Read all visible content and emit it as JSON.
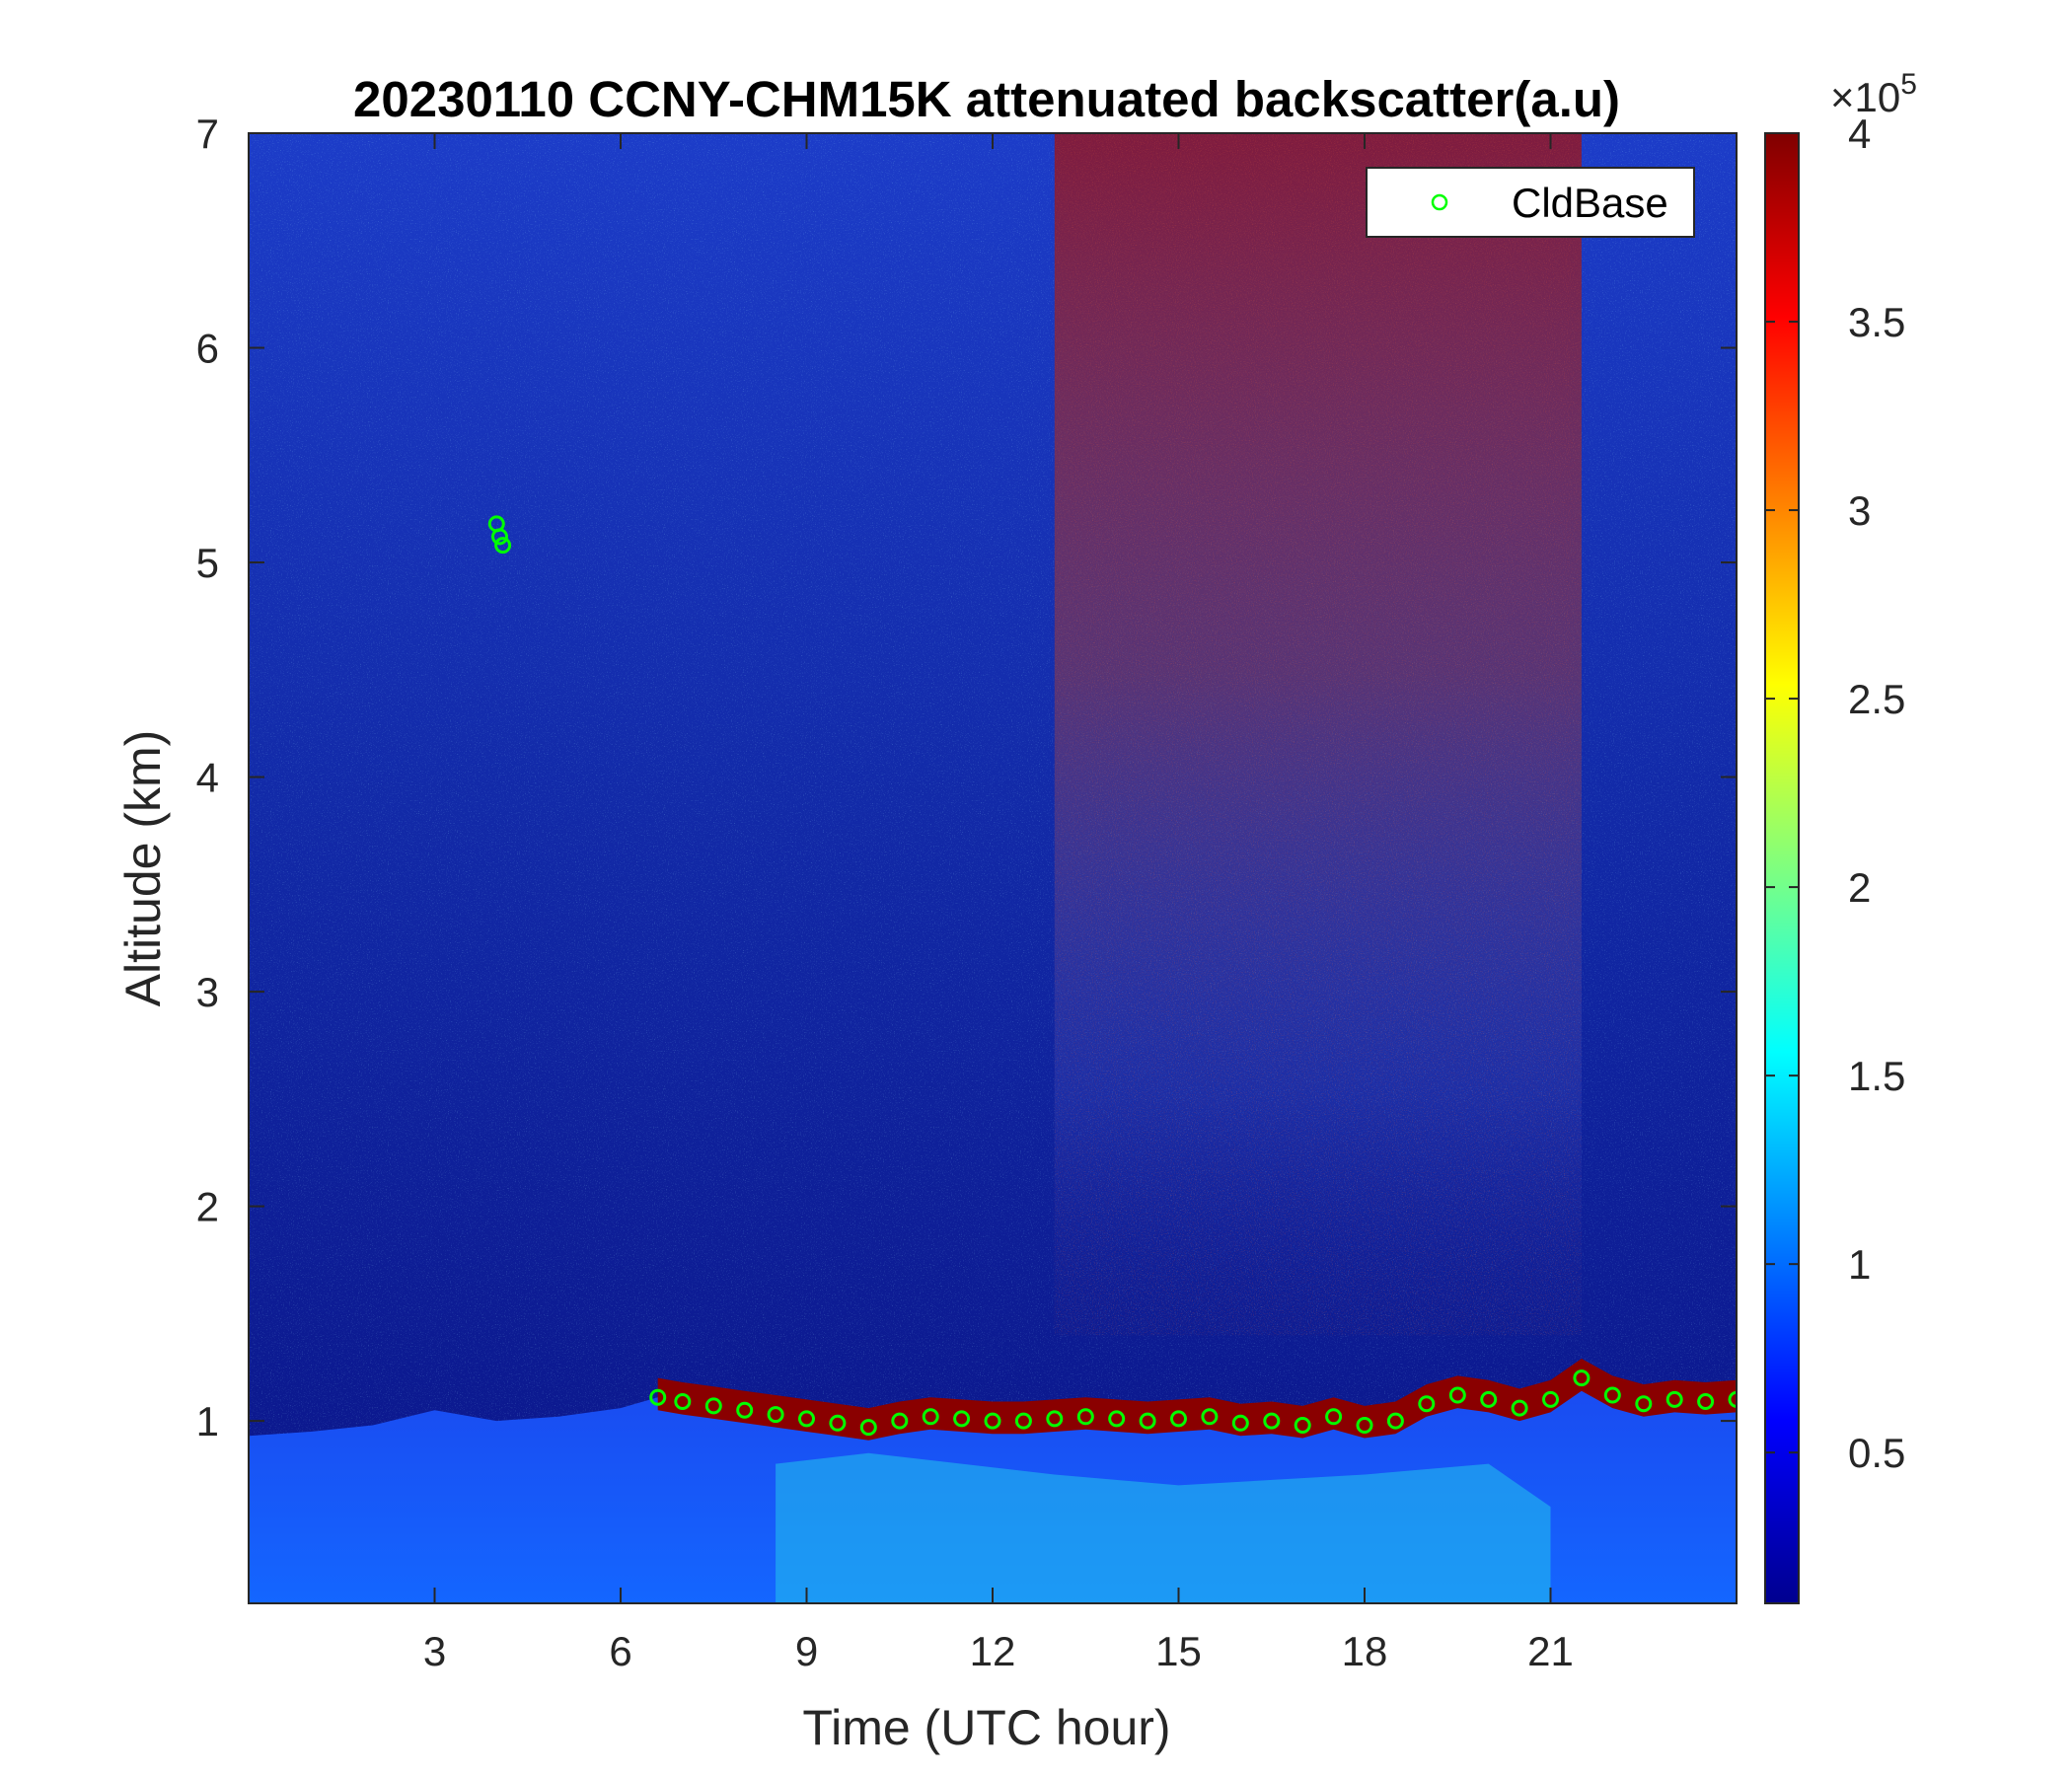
{
  "chart_data": {
    "type": "heatmap",
    "title": "20230110 CCNY-CHM15K attenuated backscatter(a.u)",
    "xlabel": "Time (UTC hour)",
    "ylabel": "Altitude (km)",
    "xlim": [
      0,
      24
    ],
    "ylim": [
      0.15,
      7
    ],
    "xticks": [
      3,
      6,
      9,
      12,
      15,
      18,
      21
    ],
    "yticks": [
      1,
      2,
      3,
      4,
      5,
      6,
      7
    ],
    "colorbar": {
      "colormap": "jet",
      "clim": [
        0.1,
        4
      ],
      "ticks": [
        0.5,
        1,
        1.5,
        2,
        2.5,
        3,
        3.5,
        4
      ],
      "multiplier": "×10",
      "exponent": "5"
    },
    "legend": {
      "position": "top-right",
      "entries": [
        "CldBase"
      ]
    },
    "series": [
      {
        "name": "CldBase",
        "type": "scatter",
        "marker": "circle",
        "color": "#00ff00",
        "x": [
          4.0,
          4.05,
          4.1,
          6.6,
          7.0,
          7.5,
          8.0,
          8.5,
          9.0,
          9.5,
          10.0,
          10.5,
          11.0,
          11.5,
          12.0,
          12.5,
          13.0,
          13.5,
          14.0,
          14.5,
          15.0,
          15.5,
          16.0,
          16.5,
          17.0,
          17.5,
          18.0,
          18.5,
          19.0,
          19.5,
          20.0,
          20.5,
          21.0,
          21.5,
          22.0,
          22.5,
          23.0,
          23.5,
          24.0
        ],
        "y": [
          5.18,
          5.12,
          5.08,
          1.11,
          1.09,
          1.07,
          1.05,
          1.03,
          1.01,
          0.99,
          0.97,
          1.0,
          1.02,
          1.01,
          1.0,
          1.0,
          1.01,
          1.02,
          1.01,
          1.0,
          1.01,
          1.02,
          0.99,
          1.0,
          0.98,
          1.02,
          0.98,
          1.0,
          1.08,
          1.12,
          1.1,
          1.06,
          1.1,
          1.2,
          1.12,
          1.08,
          1.1,
          1.09,
          1.1
        ]
      }
    ]
  }
}
